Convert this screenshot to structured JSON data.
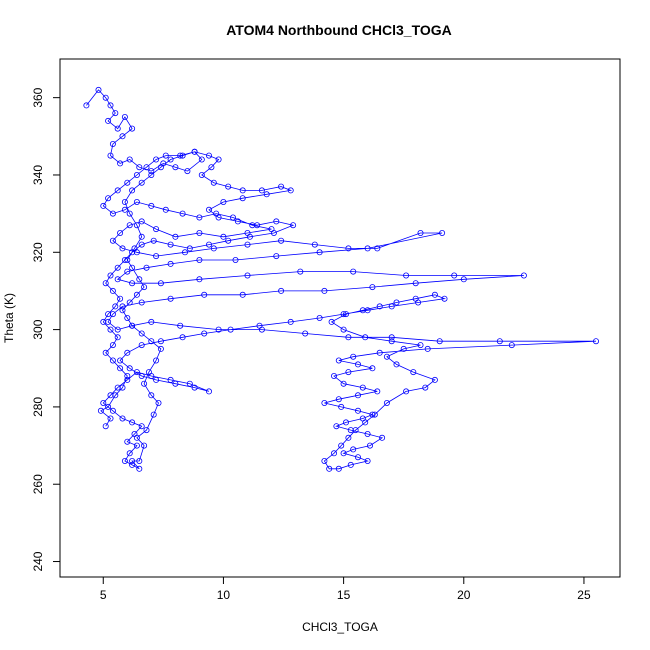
{
  "chart_data": {
    "type": "scatter",
    "title": "ATOM4 Northbound CHCl3_TOGA",
    "xlabel": "CHCl3_TOGA",
    "ylabel": "Theta (K)",
    "xlim": [
      3.2,
      26.5
    ],
    "ylim": [
      236,
      370
    ],
    "xticks": [
      "5",
      "10",
      "15",
      "20",
      "25"
    ],
    "yticks": [
      "240",
      "260",
      "280",
      "300",
      "320",
      "340",
      "360"
    ],
    "grid": false,
    "legend": "none",
    "marker": "open-circle",
    "connected": true,
    "series_color": "#0000ff",
    "series": [
      {
        "values": [
          [
            4.3,
            358
          ],
          [
            4.8,
            362
          ],
          [
            5.1,
            360
          ],
          [
            5.3,
            358
          ],
          [
            5.5,
            356
          ],
          [
            5.2,
            354
          ],
          [
            5.6,
            352
          ],
          [
            5.9,
            355
          ],
          [
            6.2,
            352
          ],
          [
            5.8,
            350
          ],
          [
            5.4,
            348
          ],
          [
            5.3,
            345
          ],
          [
            5.7,
            343
          ],
          [
            6.1,
            344
          ],
          [
            6.5,
            342
          ],
          [
            7.0,
            341
          ],
          [
            7.5,
            343
          ],
          [
            8.0,
            342
          ],
          [
            8.5,
            341
          ],
          [
            9.1,
            344
          ],
          [
            8.8,
            346
          ],
          [
            8.2,
            345
          ],
          [
            7.6,
            345
          ],
          [
            7.2,
            344
          ],
          [
            6.8,
            342
          ],
          [
            6.4,
            340
          ],
          [
            6.0,
            338
          ],
          [
            5.6,
            336
          ],
          [
            5.2,
            334
          ],
          [
            5.0,
            332
          ],
          [
            5.4,
            330
          ],
          [
            5.9,
            331
          ],
          [
            6.4,
            333
          ],
          [
            7.0,
            332
          ],
          [
            7.6,
            331
          ],
          [
            8.3,
            330
          ],
          [
            9.0,
            329
          ],
          [
            9.7,
            330
          ],
          [
            10.4,
            329
          ],
          [
            11.2,
            327
          ],
          [
            12.0,
            326
          ],
          [
            11.0,
            325
          ],
          [
            10.0,
            324
          ],
          [
            9.0,
            325
          ],
          [
            8.0,
            324
          ],
          [
            7.2,
            326
          ],
          [
            6.6,
            328
          ],
          [
            6.1,
            327
          ],
          [
            5.7,
            325
          ],
          [
            5.4,
            323
          ],
          [
            5.8,
            321
          ],
          [
            6.4,
            320
          ],
          [
            7.2,
            319
          ],
          [
            8.4,
            320
          ],
          [
            9.6,
            321
          ],
          [
            11.0,
            322
          ],
          [
            12.4,
            323
          ],
          [
            13.8,
            322
          ],
          [
            15.2,
            321
          ],
          [
            16.4,
            321
          ],
          [
            18.2,
            325
          ],
          [
            19.1,
            325
          ],
          [
            16.0,
            321
          ],
          [
            14.0,
            320
          ],
          [
            12.2,
            319
          ],
          [
            10.5,
            318
          ],
          [
            9.0,
            318
          ],
          [
            7.8,
            317
          ],
          [
            6.8,
            316
          ],
          [
            6.0,
            315
          ],
          [
            5.6,
            313
          ],
          [
            6.2,
            312
          ],
          [
            7.4,
            312
          ],
          [
            9.0,
            313
          ],
          [
            11.0,
            314
          ],
          [
            13.2,
            315
          ],
          [
            15.4,
            315
          ],
          [
            17.6,
            314
          ],
          [
            19.6,
            314
          ],
          [
            22.5,
            314
          ],
          [
            20.0,
            313
          ],
          [
            18.0,
            312
          ],
          [
            16.2,
            311
          ],
          [
            14.2,
            310
          ],
          [
            12.4,
            310
          ],
          [
            10.8,
            309
          ],
          [
            9.2,
            309
          ],
          [
            7.8,
            308
          ],
          [
            6.6,
            307
          ],
          [
            5.8,
            306
          ],
          [
            5.4,
            304
          ],
          [
            5.2,
            302
          ],
          [
            5.6,
            300
          ],
          [
            6.2,
            301
          ],
          [
            7.0,
            302
          ],
          [
            8.2,
            301
          ],
          [
            9.8,
            300
          ],
          [
            11.6,
            300
          ],
          [
            13.4,
            299
          ],
          [
            15.2,
            298
          ],
          [
            17.0,
            298
          ],
          [
            19.0,
            297
          ],
          [
            21.5,
            297
          ],
          [
            25.5,
            297
          ],
          [
            22.0,
            296
          ],
          [
            18.5,
            295
          ],
          [
            16.5,
            294
          ],
          [
            15.4,
            293
          ],
          [
            14.8,
            292
          ],
          [
            15.6,
            291
          ],
          [
            16.2,
            290
          ],
          [
            15.2,
            289
          ],
          [
            14.6,
            288
          ],
          [
            15.0,
            286
          ],
          [
            15.8,
            285
          ],
          [
            16.4,
            284
          ],
          [
            15.6,
            283
          ],
          [
            14.8,
            282
          ],
          [
            14.2,
            281
          ],
          [
            14.9,
            280
          ],
          [
            15.6,
            279
          ],
          [
            16.2,
            278
          ],
          [
            15.8,
            277
          ],
          [
            15.1,
            276
          ],
          [
            14.7,
            275
          ],
          [
            15.3,
            274
          ],
          [
            16.0,
            273
          ],
          [
            16.6,
            272
          ],
          [
            16.1,
            270
          ],
          [
            15.4,
            269
          ],
          [
            15.0,
            268
          ],
          [
            15.6,
            267
          ],
          [
            16.0,
            266
          ],
          [
            15.3,
            265
          ],
          [
            14.8,
            264
          ],
          [
            14.4,
            264
          ],
          [
            14.2,
            266
          ],
          [
            14.6,
            268
          ],
          [
            14.9,
            270
          ],
          [
            15.2,
            272
          ],
          [
            15.5,
            274
          ],
          [
            15.9,
            276
          ],
          [
            16.3,
            278
          ],
          [
            16.8,
            281
          ],
          [
            17.6,
            284
          ],
          [
            18.4,
            285
          ],
          [
            18.8,
            287
          ],
          [
            17.9,
            289
          ],
          [
            17.2,
            291
          ],
          [
            16.8,
            293
          ],
          [
            17.5,
            295
          ],
          [
            18.2,
            296
          ],
          [
            17.0,
            297
          ],
          [
            15.9,
            298
          ],
          [
            15.0,
            300
          ],
          [
            14.5,
            302
          ],
          [
            15.1,
            304
          ],
          [
            15.8,
            305
          ],
          [
            16.5,
            306
          ],
          [
            17.2,
            307
          ],
          [
            18.0,
            308
          ],
          [
            18.8,
            309
          ],
          [
            19.2,
            308
          ],
          [
            18.1,
            307
          ],
          [
            17.0,
            306
          ],
          [
            16.0,
            305
          ],
          [
            15.0,
            304
          ],
          [
            14.0,
            303
          ],
          [
            12.8,
            302
          ],
          [
            11.5,
            301
          ],
          [
            10.3,
            300
          ],
          [
            9.2,
            299
          ],
          [
            8.3,
            298
          ],
          [
            7.4,
            297
          ],
          [
            6.6,
            296
          ],
          [
            6.0,
            294
          ],
          [
            5.7,
            292
          ],
          [
            6.1,
            290
          ],
          [
            6.6,
            288
          ],
          [
            7.2,
            287
          ],
          [
            8.0,
            286
          ],
          [
            8.8,
            285
          ],
          [
            9.4,
            284
          ],
          [
            8.6,
            286
          ],
          [
            7.8,
            287
          ],
          [
            7.0,
            288
          ],
          [
            6.4,
            289
          ],
          [
            6.0,
            287
          ],
          [
            5.6,
            285
          ],
          [
            5.3,
            283
          ],
          [
            5.0,
            281
          ],
          [
            5.4,
            279
          ],
          [
            5.8,
            277
          ],
          [
            6.2,
            276
          ],
          [
            6.6,
            275
          ],
          [
            6.3,
            273
          ],
          [
            6.0,
            271
          ],
          [
            6.4,
            270
          ],
          [
            6.1,
            268
          ],
          [
            5.9,
            266
          ],
          [
            6.2,
            265
          ],
          [
            6.5,
            264
          ],
          [
            6.2,
            266
          ],
          [
            6.5,
            266
          ],
          [
            6.7,
            270
          ],
          [
            6.4,
            272
          ],
          [
            6.8,
            274
          ],
          [
            7.1,
            278
          ],
          [
            7.3,
            281
          ],
          [
            7.0,
            283
          ],
          [
            6.7,
            286
          ],
          [
            6.9,
            289
          ],
          [
            7.2,
            292
          ],
          [
            7.4,
            295
          ],
          [
            7.0,
            297
          ],
          [
            6.6,
            299
          ],
          [
            6.2,
            301
          ],
          [
            6.0,
            303
          ],
          [
            5.8,
            305
          ],
          [
            6.1,
            307
          ],
          [
            6.4,
            309
          ],
          [
            6.7,
            311
          ],
          [
            6.5,
            313
          ],
          [
            6.2,
            316
          ],
          [
            6.0,
            318
          ],
          [
            6.3,
            321
          ],
          [
            6.6,
            324
          ],
          [
            6.4,
            327
          ],
          [
            6.1,
            330
          ],
          [
            5.9,
            333
          ],
          [
            6.2,
            336
          ],
          [
            6.6,
            338
          ],
          [
            7.0,
            340
          ],
          [
            7.4,
            342
          ],
          [
            7.8,
            344
          ],
          [
            8.3,
            345
          ],
          [
            8.8,
            346
          ],
          [
            9.4,
            345
          ],
          [
            9.8,
            344
          ],
          [
            9.5,
            342
          ],
          [
            9.1,
            340
          ],
          [
            9.6,
            338
          ],
          [
            10.2,
            337
          ],
          [
            10.8,
            336
          ],
          [
            11.6,
            336
          ],
          [
            12.4,
            337
          ],
          [
            12.8,
            336
          ],
          [
            11.8,
            335
          ],
          [
            10.8,
            334
          ],
          [
            10.0,
            333
          ],
          [
            9.4,
            331
          ],
          [
            9.8,
            329
          ],
          [
            10.6,
            328
          ],
          [
            11.4,
            327
          ],
          [
            12.2,
            328
          ],
          [
            12.9,
            327
          ],
          [
            12.1,
            325
          ],
          [
            11.1,
            324
          ],
          [
            10.2,
            323
          ],
          [
            9.4,
            322
          ],
          [
            8.6,
            321
          ],
          [
            7.8,
            322
          ],
          [
            7.1,
            323
          ],
          [
            6.6,
            322
          ],
          [
            6.2,
            320
          ],
          [
            5.9,
            318
          ],
          [
            5.6,
            316
          ],
          [
            5.3,
            314
          ],
          [
            5.1,
            312
          ],
          [
            5.4,
            310
          ],
          [
            5.7,
            308
          ],
          [
            5.5,
            306
          ],
          [
            5.2,
            304
          ],
          [
            5.0,
            302
          ],
          [
            5.3,
            300
          ],
          [
            5.6,
            298
          ],
          [
            5.4,
            296
          ],
          [
            5.1,
            294
          ],
          [
            5.4,
            292
          ],
          [
            5.7,
            290
          ],
          [
            6.0,
            288
          ],
          [
            5.8,
            285
          ],
          [
            5.5,
            283
          ],
          [
            5.2,
            280
          ],
          [
            4.9,
            279
          ],
          [
            5.3,
            277
          ],
          [
            5.1,
            275
          ]
        ]
      }
    ]
  }
}
